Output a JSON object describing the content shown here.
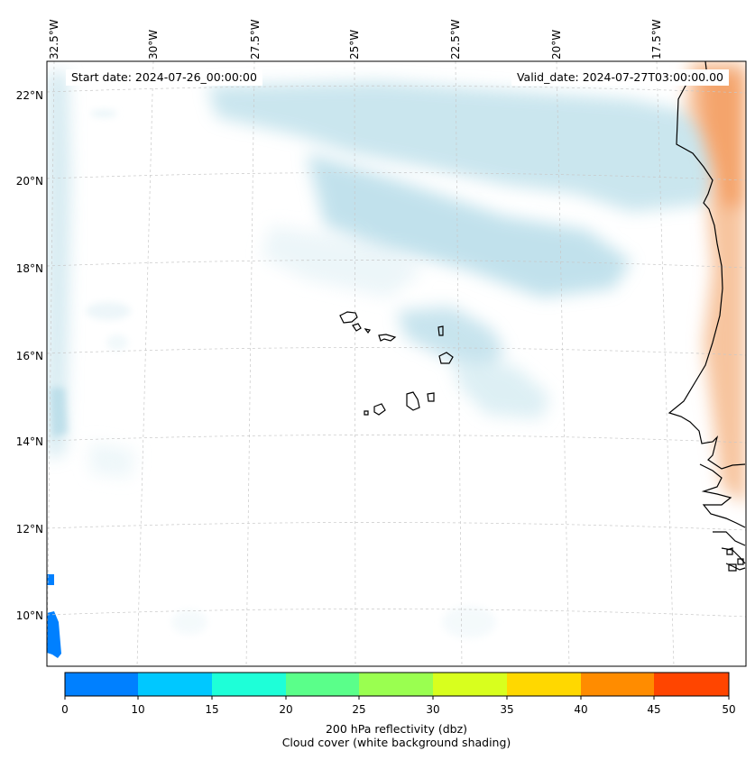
{
  "header": {
    "start_date": "Start date: 2024-07-26_00:00:00",
    "valid_date": "Valid_date: 2024-07-27T03:00:00.00"
  },
  "map": {
    "longitude_labels": [
      "32.5°W",
      "30°W",
      "27.5°W",
      "25°W",
      "22.5°W",
      "20°W",
      "17.5°W"
    ],
    "latitude_labels": [
      "22°N",
      "20°N",
      "18°N",
      "16°N",
      "14°N",
      "12°N",
      "10°N"
    ],
    "colors": {
      "cloud_shading": "#add8e6",
      "reflectivity_low": "#0080ff",
      "land_reflectivity": "#f4a460",
      "coastline": "#000000",
      "gridline": "#c8c8c8"
    }
  },
  "colorbar": {
    "ticks": [
      "0",
      "10",
      "15",
      "20",
      "25",
      "30",
      "35",
      "40",
      "45",
      "50"
    ],
    "colors": [
      "#0080ff",
      "#00c8ff",
      "#1effd8",
      "#5aff8a",
      "#9aff50",
      "#d8ff1e",
      "#ffd800",
      "#ff8c00",
      "#ff4500"
    ],
    "title_line1": "200 hPa reflectivity (dbz)",
    "title_line2": "Cloud cover (white background shading)"
  }
}
